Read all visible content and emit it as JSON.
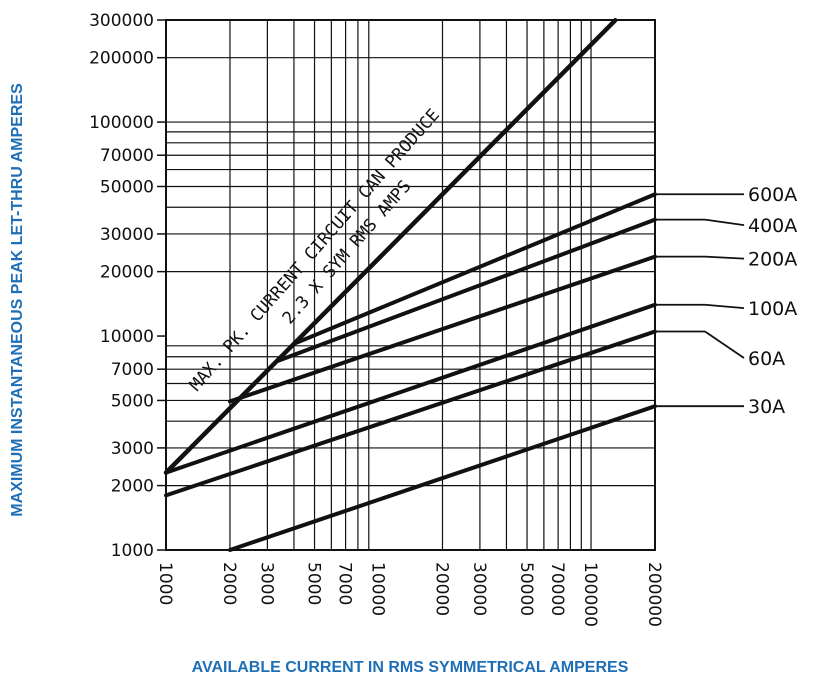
{
  "chart_data": {
    "type": "line",
    "x_scale": "log",
    "y_scale": "log",
    "xlabel": "AVAILABLE CURRENT IN RMS SYMMETRICAL AMPERES",
    "ylabel": "MAXIMUM INSTANTANEOUS PEAK LET-THRU AMPERES",
    "xlim": [
      1000,
      200000
    ],
    "ylim": [
      1000,
      300000
    ],
    "x_ticks": [
      {
        "value": 1000,
        "label": "1000"
      },
      {
        "value": 2000,
        "label": "2000"
      },
      {
        "value": 3000,
        "label": "3000"
      },
      {
        "value": 5000,
        "label": "5000"
      },
      {
        "value": 7000,
        "label": "7000"
      },
      {
        "value": 10000,
        "label": "10000"
      },
      {
        "value": 20000,
        "label": "20000"
      },
      {
        "value": 30000,
        "label": "30000"
      },
      {
        "value": 50000,
        "label": "50000"
      },
      {
        "value": 70000,
        "label": "70000"
      },
      {
        "value": 100000,
        "label": "100000"
      },
      {
        "value": 200000,
        "label": "200000"
      }
    ],
    "y_ticks": [
      {
        "value": 1000,
        "label": "1000"
      },
      {
        "value": 2000,
        "label": "2000"
      },
      {
        "value": 3000,
        "label": "3000"
      },
      {
        "value": 5000,
        "label": "5000"
      },
      {
        "value": 7000,
        "label": "7000"
      },
      {
        "value": 10000,
        "label": "10000"
      },
      {
        "value": 20000,
        "label": "20000"
      },
      {
        "value": 30000,
        "label": "30000"
      },
      {
        "value": 50000,
        "label": "50000"
      },
      {
        "value": 70000,
        "label": "70000"
      },
      {
        "value": 100000,
        "label": "100000"
      },
      {
        "value": 200000,
        "label": "200000"
      },
      {
        "value": 300000,
        "label": "300000"
      }
    ],
    "grid": true,
    "reference_line": {
      "label_line1": "MAX. PK. CURRENT CIRCUIT CAN PRODUCE",
      "label_line2": "2.3 X SYM RMS AMPS",
      "points": [
        [
          1000,
          2300
        ],
        [
          130000,
          299000
        ]
      ]
    },
    "series": [
      {
        "name": "600A",
        "points": [
          [
            4000,
            9200
          ],
          [
            200000,
            46000
          ]
        ],
        "label_value": 46000
      },
      {
        "name": "400A",
        "points": [
          [
            3300,
            7600
          ],
          [
            200000,
            35000
          ]
        ],
        "label_value": 33000
      },
      {
        "name": "200A",
        "points": [
          [
            2000,
            4950
          ],
          [
            200000,
            23500
          ]
        ],
        "label_value": 23000
      },
      {
        "name": "100A",
        "points": [
          [
            1000,
            2300
          ],
          [
            200000,
            14000
          ]
        ],
        "label_value": 13500
      },
      {
        "name": "60A",
        "points": [
          [
            1000,
            1800
          ],
          [
            200000,
            10500
          ]
        ],
        "label_value": 7900
      },
      {
        "name": "30A",
        "points": [
          [
            2000,
            1000
          ],
          [
            200000,
            4700
          ]
        ],
        "label_value": 4700
      }
    ]
  }
}
